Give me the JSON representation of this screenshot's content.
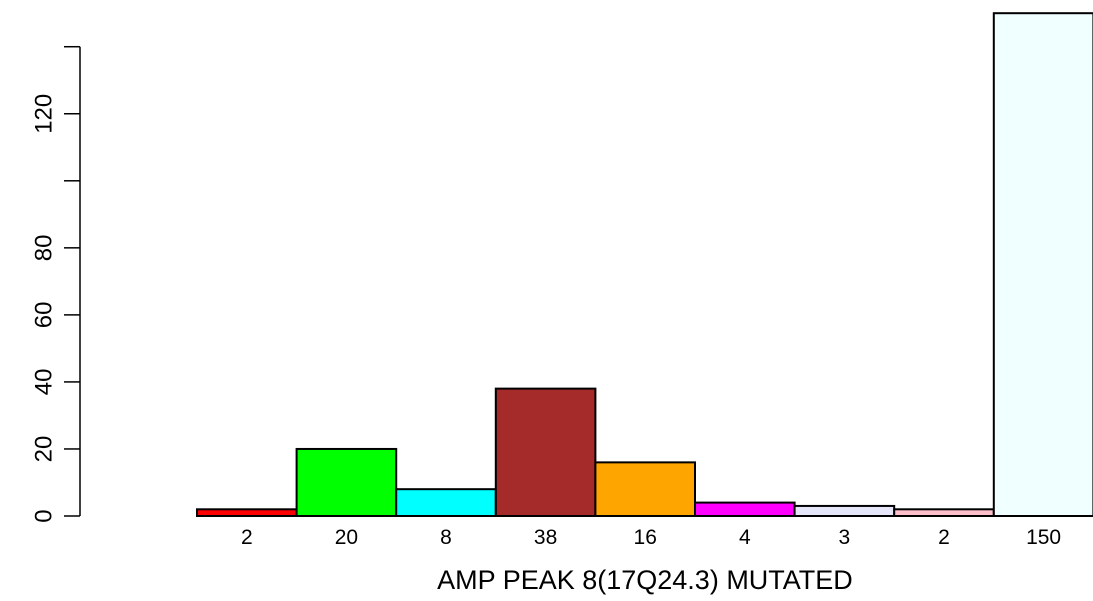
{
  "chart_data": {
    "type": "bar",
    "xlabel": "AMP PEAK 8(17Q24.3) MUTATED",
    "ylabel": "",
    "ylim": [
      0,
      150
    ],
    "yticks": [
      0,
      20,
      40,
      60,
      80,
      100,
      120,
      140
    ],
    "ytick_labels": [
      "0",
      "20",
      "40",
      "60",
      "80",
      "",
      "120",
      ""
    ],
    "categories": [
      "2",
      "20",
      "8",
      "38",
      "16",
      "4",
      "3",
      "2",
      "150"
    ],
    "values": [
      2,
      20,
      8,
      38,
      16,
      4,
      3,
      2,
      150
    ],
    "colors": [
      "#ff0000",
      "#00ff00",
      "#00ffff",
      "#a52a2a",
      "#ffa500",
      "#ff00ff",
      "#e6e6fa",
      "#ffc0cb",
      "#f0ffff"
    ],
    "grid": false,
    "legend": "none"
  }
}
